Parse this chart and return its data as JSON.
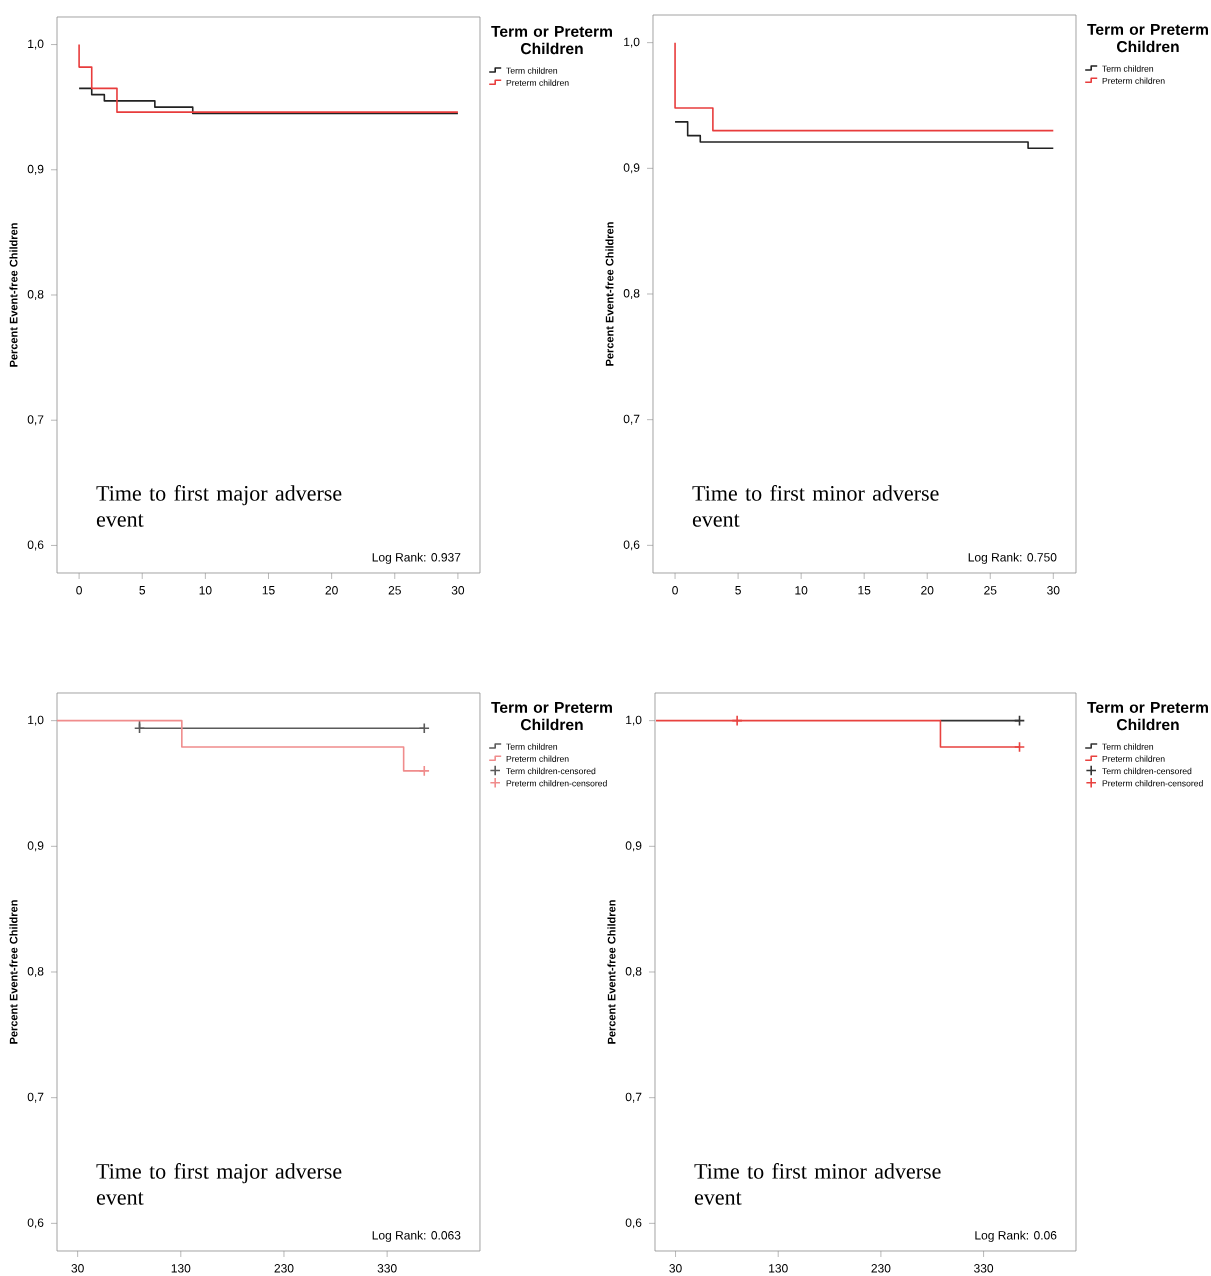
{
  "chart_data": [
    {
      "type": "step",
      "ylabel": "Percent Event-free Children",
      "legend_title": "Term or Preterm Children",
      "legend": "top right",
      "annotations": [
        "Time to first major adverse event",
        "Log Rank: 0.937"
      ],
      "xlim": [
        -1.75,
        31.75
      ],
      "xticks": [
        0,
        5,
        10,
        15,
        20,
        25,
        30
      ],
      "ylim": [
        0.578,
        1.022
      ],
      "yticks": [
        {
          "value": 0.6,
          "label": "0,6"
        },
        {
          "value": 0.7,
          "label": "0,7"
        },
        {
          "value": 0.8,
          "label": "0,8"
        },
        {
          "value": 0.9,
          "label": "0,9"
        },
        {
          "value": 1.0,
          "label": "1,0"
        }
      ],
      "series": [
        {
          "name": "Term children",
          "color": "#222222",
          "x": [
            0,
            1,
            2,
            6,
            9,
            30
          ],
          "values": [
            0.965,
            0.96,
            0.955,
            0.95,
            0.945,
            0.945
          ]
        },
        {
          "name": "Preterm children",
          "color": "#e83c3c",
          "x": [
            0,
            0,
            1,
            3,
            30
          ],
          "values": [
            1.0,
            0.982,
            0.965,
            0.946,
            0.946
          ]
        }
      ]
    },
    {
      "type": "step",
      "ylabel": "Percent Event-free Children",
      "legend_title": "Term or Preterm Children",
      "legend": "top right",
      "annotations": [
        "Time to first minor adverse event",
        "Log Rank: 0.750"
      ],
      "xlim": [
        -1.75,
        31.8
      ],
      "xticks": [
        0,
        5,
        10,
        15,
        20,
        25,
        30
      ],
      "ylim": [
        0.578,
        1.022
      ],
      "yticks": [
        {
          "value": 0.6,
          "label": "0,6"
        },
        {
          "value": 0.7,
          "label": "0,7"
        },
        {
          "value": 0.8,
          "label": "0,8"
        },
        {
          "value": 0.9,
          "label": "0,9"
        },
        {
          "value": 1.0,
          "label": "1,0"
        }
      ],
      "series": [
        {
          "name": "Term children",
          "color": "#222222",
          "x": [
            0,
            1,
            2,
            28,
            30
          ],
          "values": [
            0.937,
            0.926,
            0.921,
            0.916,
            0.916
          ]
        },
        {
          "name": "Preterm children",
          "color": "#e83c3c",
          "x": [
            0,
            0,
            3,
            30
          ],
          "values": [
            1.0,
            0.948,
            0.93,
            0.93
          ]
        }
      ]
    },
    {
      "type": "step",
      "ylabel": "Percent Event-free Children",
      "legend_title": "Term or Preterm Children",
      "legend": "top right",
      "annotations": [
        "Time to first major adverse event",
        "Log Rank: 0.063"
      ],
      "xlim": [
        10,
        420
      ],
      "xticks": [
        30,
        130,
        230,
        330
      ],
      "ylim": [
        0.578,
        1.022
      ],
      "yticks": [
        {
          "value": 0.6,
          "label": "0,6"
        },
        {
          "value": 0.7,
          "label": "0,7"
        },
        {
          "value": 0.8,
          "label": "0,8"
        },
        {
          "value": 0.9,
          "label": "0,9"
        },
        {
          "value": 1.0,
          "label": "1,0"
        }
      ],
      "series": [
        {
          "name": "Term children",
          "color": "#5a5a5a",
          "x": [
            90,
            90,
            366
          ],
          "values": [
            1.0,
            0.994,
            0.994
          ]
        },
        {
          "name": "Preterm children",
          "color": "#f08c8c",
          "x": [
            10,
            131,
            346,
            366
          ],
          "values": [
            1.0,
            0.979,
            0.96,
            0.96
          ]
        },
        {
          "name": "Term children-censored",
          "type": "scatter",
          "marker": "cross",
          "color": "#5a5a5a",
          "x": [
            90,
            366
          ],
          "values": [
            0.994,
            0.994
          ]
        },
        {
          "name": "Preterm children-censored",
          "type": "scatter",
          "marker": "cross",
          "color": "#f08c8c",
          "x": [
            366
          ],
          "values": [
            0.96
          ]
        }
      ]
    },
    {
      "type": "step",
      "ylabel": "Percent Event-free Children",
      "legend_title": "Term or Preterm Children",
      "legend": "top right",
      "annotations": [
        "Time to first minor adverse event",
        "Log Rank: 0.06"
      ],
      "xlim": [
        10,
        420
      ],
      "xticks": [
        30,
        130,
        230,
        330
      ],
      "ylim": [
        0.578,
        1.022
      ],
      "yticks": [
        {
          "value": 0.6,
          "label": "0,6"
        },
        {
          "value": 0.7,
          "label": "0,7"
        },
        {
          "value": 0.8,
          "label": "0,8"
        },
        {
          "value": 0.9,
          "label": "0,9"
        },
        {
          "value": 1.0,
          "label": "1,0"
        }
      ],
      "series": [
        {
          "name": "Term children",
          "color": "#333333",
          "x": [
            288,
            365
          ],
          "values": [
            1.0,
            1.0
          ]
        },
        {
          "name": "Preterm children",
          "color": "#e8423f",
          "x": [
            11,
            288,
            365
          ],
          "values": [
            1.0,
            0.979,
            0.979
          ]
        },
        {
          "name": "Term children-censored",
          "type": "scatter",
          "marker": "cross",
          "color": "#333333",
          "x": [
            365
          ],
          "values": [
            1.0
          ]
        },
        {
          "name": "Preterm children-censored",
          "type": "scatter",
          "marker": "cross",
          "color": "#e8423f",
          "x": [
            90,
            365
          ],
          "values": [
            1.0,
            0.979
          ]
        }
      ]
    }
  ]
}
